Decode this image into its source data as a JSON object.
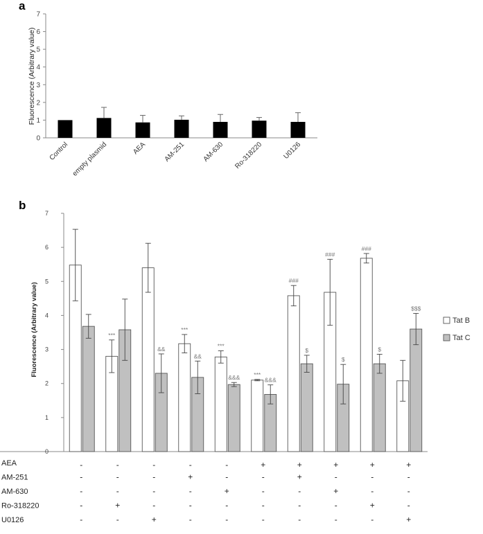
{
  "panels": {
    "a": "a",
    "b": "b"
  },
  "chart_data": [
    {
      "type": "bar",
      "panel": "a",
      "ylabel": "Fluorescence (Arbitrary value)",
      "ylim": [
        0,
        7
      ],
      "yticks": [
        0,
        1,
        2,
        3,
        4,
        5,
        6,
        7
      ],
      "categories": [
        "Control",
        "empty plasmid",
        "AEA",
        "AM-251",
        "AM-630",
        "Ro-318220",
        "U0126"
      ],
      "values": [
        1.0,
        1.12,
        0.87,
        1.02,
        0.9,
        0.97,
        0.9
      ],
      "errors": [
        0.0,
        0.6,
        0.4,
        0.22,
        0.42,
        0.18,
        0.52
      ],
      "bar_color": "#000000"
    },
    {
      "type": "bar",
      "panel": "b",
      "ylabel": "Fluorescence (Arbitrary value)",
      "ylim": [
        0,
        7
      ],
      "yticks": [
        0,
        1,
        2,
        3,
        4,
        5,
        6,
        7
      ],
      "series": [
        {
          "name": "Tat B",
          "color": "#ffffff",
          "values": [
            5.48,
            2.8,
            5.4,
            3.17,
            2.78,
            2.1,
            4.58,
            4.68,
            5.68,
            2.08
          ],
          "errors": [
            1.05,
            0.48,
            0.72,
            0.27,
            0.18,
            0.02,
            0.3,
            0.97,
            0.14,
            0.6
          ],
          "annotations": [
            "",
            "***",
            "",
            "***",
            "***",
            "***",
            "###",
            "###",
            "###",
            ""
          ]
        },
        {
          "name": "Tat C",
          "color": "#c0c0c0",
          "values": [
            3.68,
            3.58,
            2.3,
            2.18,
            1.97,
            1.68,
            2.58,
            1.98,
            2.58,
            3.6
          ],
          "errors": [
            0.35,
            0.9,
            0.57,
            0.48,
            0.06,
            0.28,
            0.25,
            0.58,
            0.28,
            0.46
          ],
          "annotations": [
            "",
            "",
            "&&",
            "&&",
            "&&&",
            "&&&",
            "$",
            "$",
            "$",
            "$$$"
          ]
        }
      ],
      "legend_position": "right"
    }
  ],
  "treatment_table": {
    "rows": [
      {
        "label": "AEA",
        "signs": [
          "-",
          "-",
          "-",
          "-",
          "-",
          "+",
          "+",
          "+",
          "+",
          "+"
        ]
      },
      {
        "label": "AM-251",
        "signs": [
          "-",
          "-",
          "-",
          "+",
          "-",
          "-",
          "+",
          "-",
          "-",
          "-"
        ]
      },
      {
        "label": "AM-630",
        "signs": [
          "-",
          "-",
          "-",
          "-",
          "+",
          "-",
          "-",
          "+",
          "-",
          "-"
        ]
      },
      {
        "label": "Ro-318220",
        "signs": [
          "-",
          "+",
          "-",
          "-",
          "-",
          "-",
          "-",
          "-",
          "+",
          "-"
        ]
      },
      {
        "label": "U0126",
        "signs": [
          "-",
          "-",
          "+",
          "-",
          "-",
          "-",
          "-",
          "-",
          "-",
          "+"
        ]
      }
    ]
  }
}
